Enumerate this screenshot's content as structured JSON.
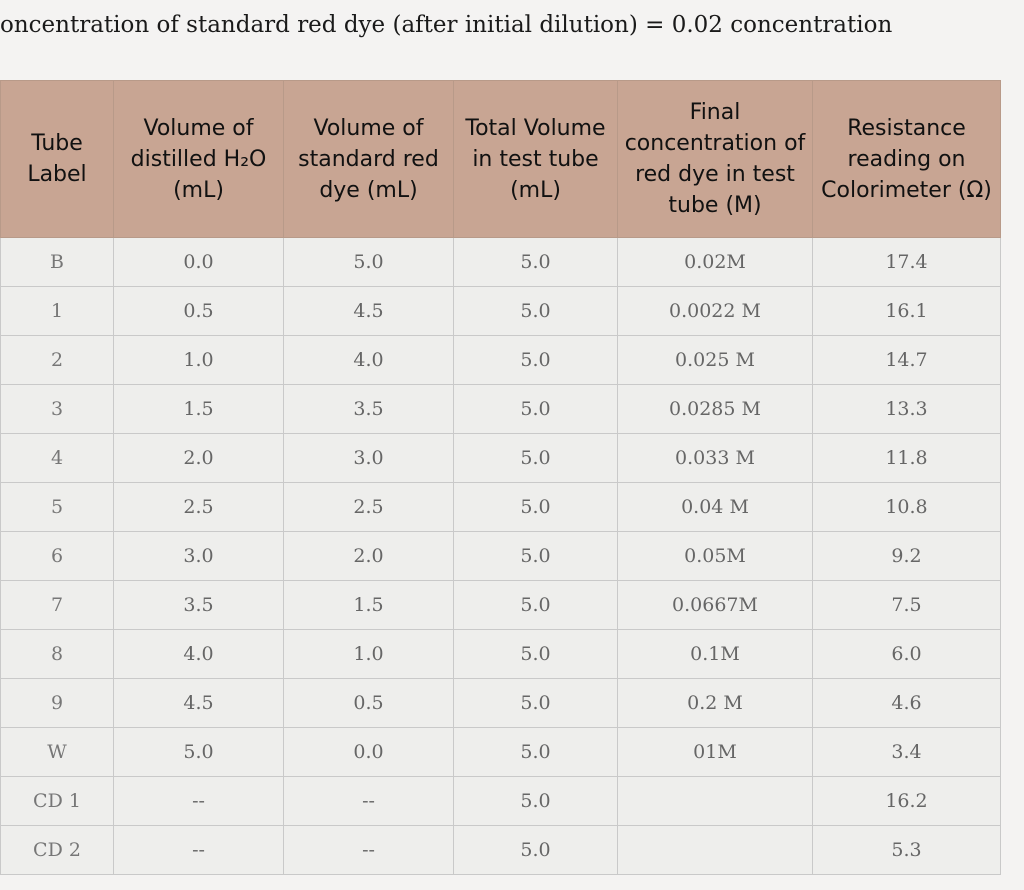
{
  "header": {
    "title": "oncentration of standard red dye (after initial dilution) = 0.02 concentration"
  },
  "table": {
    "columns": [
      "Tube Label",
      "Volume of distilled H₂O (mL)",
      "Volume of standard red dye (mL)",
      "Total Volume in test tube (mL)",
      "Final concentration of red dye in test tube (M)",
      "Resistance reading on Colorimeter (Ω)"
    ],
    "rows": [
      [
        "B",
        "0.0",
        "5.0",
        "5.0",
        "0.02M",
        "17.4"
      ],
      [
        "1",
        "0.5",
        "4.5",
        "5.0",
        "0.0022 M",
        "16.1"
      ],
      [
        "2",
        "1.0",
        "4.0",
        "5.0",
        "0.025 M",
        "14.7"
      ],
      [
        "3",
        "1.5",
        "3.5",
        "5.0",
        "0.0285 M",
        "13.3"
      ],
      [
        "4",
        "2.0",
        "3.0",
        "5.0",
        "0.033 M",
        "11.8"
      ],
      [
        "5",
        "2.5",
        "2.5",
        "5.0",
        "0.04 M",
        "10.8"
      ],
      [
        "6",
        "3.0",
        "2.0",
        "5.0",
        "0.05M",
        "9.2"
      ],
      [
        "7",
        "3.5",
        "1.5",
        "5.0",
        "0.0667M",
        "7.5"
      ],
      [
        "8",
        "4.0",
        "1.0",
        "5.0",
        "0.1M",
        "6.0"
      ],
      [
        "9",
        "4.5",
        "0.5",
        "5.0",
        "0.2 M",
        "4.6"
      ],
      [
        "W",
        "5.0",
        "0.0",
        "5.0",
        "01M",
        "3.4"
      ],
      [
        "CD 1",
        "--",
        "--",
        "5.0",
        null,
        "16.2"
      ],
      [
        "CD 2",
        "--",
        "--",
        "5.0",
        null,
        "5.3"
      ]
    ]
  }
}
